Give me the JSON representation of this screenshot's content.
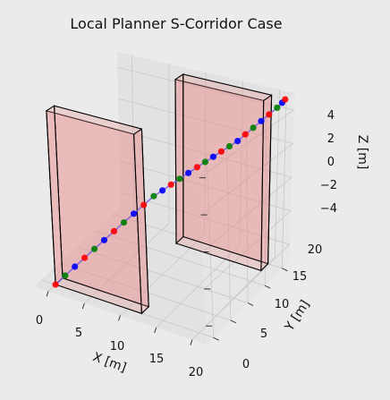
{
  "chart_data": {
    "type": "3d-scatter-line",
    "title": "Local Planner S-Corridor Case",
    "xlabel": "X [m]",
    "ylabel": "Y [m]",
    "zlabel": "Z [m]",
    "xlim": [
      -2,
      22
    ],
    "ylim": [
      -2,
      22
    ],
    "zlim": [
      -5,
      5
    ],
    "xticks": [
      "0",
      "5",
      "10",
      "15",
      "20"
    ],
    "yticks": [
      "0",
      "5",
      "10",
      "15",
      "20"
    ],
    "zticks": [
      "−4",
      "−2",
      "0",
      "2",
      "4"
    ],
    "grid": true,
    "legend": "none",
    "background": "#ebebeb",
    "pane_color": "#e2e2e2",
    "grid_color": "#c8c8c8",
    "obstacle_fill": "#e88888",
    "obstacle_edge": "#000000",
    "point_colors": [
      "#ff0000",
      "#008000",
      "#0000ff"
    ],
    "line_color": "#7b5ce0",
    "obstacles": [
      {
        "x": [
          0,
          12
        ],
        "y": [
          0,
          2
        ],
        "z": [
          -5,
          5
        ]
      },
      {
        "x": [
          8,
          20
        ],
        "y": [
          18,
          20
        ],
        "z": [
          -5,
          5
        ]
      }
    ],
    "points": [
      [
        0,
        0,
        -5
      ],
      [
        0.8,
        1.2,
        -4.6
      ],
      [
        1.6,
        2.4,
        -4.2
      ],
      [
        2.4,
        3.6,
        -3.8
      ],
      [
        3.2,
        4.8,
        -3.4
      ],
      [
        4.0,
        6.0,
        -3.0
      ],
      [
        4.8,
        7.2,
        -2.6
      ],
      [
        5.6,
        8.4,
        -2.2
      ],
      [
        6.4,
        9.6,
        -1.8
      ],
      [
        7.2,
        10.8,
        -1.4
      ],
      [
        8.0,
        12.0,
        -1.0
      ],
      [
        8.8,
        12.8,
        -0.7
      ],
      [
        9.6,
        13.6,
        -0.4
      ],
      [
        10.4,
        14.4,
        -0.1
      ],
      [
        11.2,
        15.2,
        0.2
      ],
      [
        12.0,
        16.0,
        0.5
      ],
      [
        12.8,
        16.6,
        0.8
      ],
      [
        13.6,
        17.2,
        1.1
      ],
      [
        14.4,
        17.8,
        1.4
      ],
      [
        15.2,
        18.4,
        1.7
      ],
      [
        16.0,
        19.0,
        2.0
      ],
      [
        16.8,
        19.5,
        2.4
      ],
      [
        17.6,
        20.0,
        2.8
      ],
      [
        18.4,
        20.5,
        3.2
      ],
      [
        19.2,
        21.0,
        3.6
      ],
      [
        20.0,
        21.5,
        4.0
      ],
      [
        20.5,
        21.8,
        4.3
      ],
      [
        20.8,
        22.0,
        4.5
      ]
    ]
  }
}
